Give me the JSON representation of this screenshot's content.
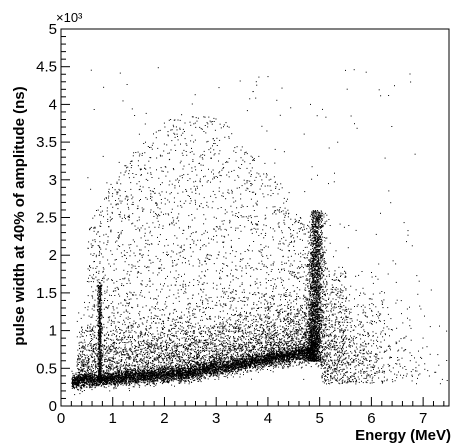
{
  "chart_data": {
    "type": "scatter",
    "title": "",
    "xlabel": "Energy (MeV)",
    "ylabel": "pulse width at 40% of amplitude (ns)",
    "y_multiplier_label": "×10³",
    "xlim": [
      0,
      7.5
    ],
    "ylim": [
      0,
      5
    ],
    "x_ticks": [
      0,
      1,
      2,
      3,
      4,
      5,
      6,
      7
    ],
    "x_tick_labels": [
      "0",
      "1",
      "2",
      "3",
      "4",
      "5",
      "6",
      "7"
    ],
    "y_ticks": [
      0,
      0.5,
      1,
      1.5,
      2,
      2.5,
      3,
      3.5,
      4,
      4.5,
      5
    ],
    "y_tick_labels": [
      "0",
      "0.5",
      "1",
      "1.5",
      "2",
      "2.5",
      "3",
      "3.5",
      "4",
      "4.5",
      "5"
    ],
    "grid": false,
    "legend": "none",
    "marker_color": "#000000",
    "series": [
      {
        "name": "",
        "description_points": [
          {
            "x": 0.2,
            "y": 0.33
          },
          {
            "x": 0.5,
            "y": 0.33
          },
          {
            "x": 0.75,
            "y": 0.34
          },
          {
            "x": 1.0,
            "y": 0.36
          },
          {
            "x": 1.5,
            "y": 0.39
          },
          {
            "x": 2.0,
            "y": 0.42
          },
          {
            "x": 2.3,
            "y": 0.45
          },
          {
            "x": 2.5,
            "y": 0.44
          },
          {
            "x": 3.0,
            "y": 0.5
          },
          {
            "x": 3.5,
            "y": 0.55
          },
          {
            "x": 4.0,
            "y": 0.6
          },
          {
            "x": 4.5,
            "y": 0.65
          },
          {
            "x": 4.8,
            "y": 0.72
          },
          {
            "x": 4.9,
            "y": 1.2
          },
          {
            "x": 4.95,
            "y": 1.8
          },
          {
            "x": 5.0,
            "y": 2.4
          },
          {
            "x": 0.72,
            "y": 1.0
          },
          {
            "x": 0.74,
            "y": 1.6
          }
        ]
      }
    ]
  }
}
